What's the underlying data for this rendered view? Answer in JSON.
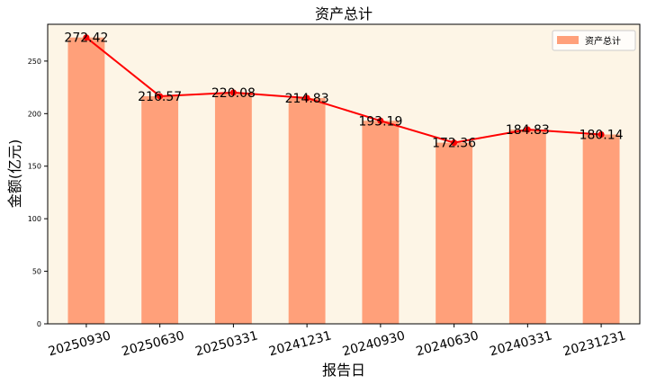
{
  "chart_data": {
    "type": "bar",
    "title": "资产总计",
    "xlabel": "报告日",
    "ylabel": "金额(亿元)",
    "categories": [
      "20250930",
      "20250630",
      "20250331",
      "20241231",
      "20240930",
      "20240630",
      "20240331",
      "20231231"
    ],
    "series": [
      {
        "name": "资产总计",
        "values": [
          272.42,
          216.57,
          220.08,
          214.83,
          193.19,
          172.36,
          184.83,
          180.14
        ]
      }
    ],
    "data_labels": [
      "272.42",
      "216.57",
      "220.08",
      "214.83",
      "193.19",
      "172.36",
      "184.83",
      "180.14"
    ],
    "overlay_line": true,
    "ylim": [
      0,
      285
    ],
    "yticks": [
      0,
      50,
      100,
      150,
      200,
      250
    ],
    "grid": false,
    "legend_position": "top-right",
    "colors": {
      "bar": "#ffa07a",
      "line": "#ff0000",
      "plot_background": "#fdf5e6"
    }
  }
}
